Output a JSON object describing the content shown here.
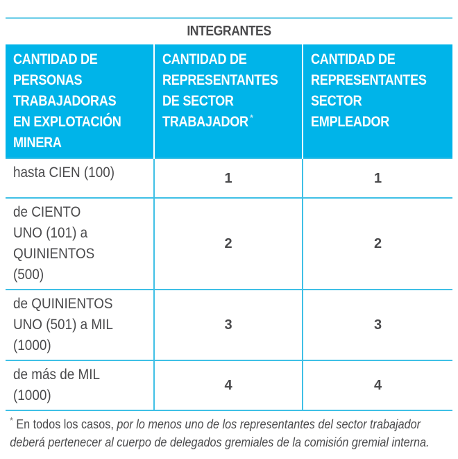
{
  "table": {
    "title": "INTEGRANTES",
    "header_color": "#00b4e9",
    "rule_color": "#3fc0e6",
    "columns": [
      {
        "label": "CANTIDAD DE PERSONAS TRABAJADORAS EN EXPLOTACIÓN MINERA",
        "lines": [
          "CANTIDAD DE",
          "PERSONAS",
          "TRABAJADORAS",
          "EN EXPLOTACIÓN",
          "MINERA"
        ]
      },
      {
        "label": "CANTIDAD DE REPRESENTANTES DE SECTOR TRABAJADOR *",
        "lines": [
          "CANTIDAD DE",
          "REPRESENTANTES",
          "DE SECTOR",
          "TRABAJADOR"
        ],
        "marker": "*"
      },
      {
        "label": "CANTIDAD DE REPRESENTANTES SECTOR EMPLEADOR",
        "lines": [
          "CANTIDAD DE",
          "REPRESENTANTES",
          "SECTOR",
          "EMPLEADOR"
        ]
      }
    ],
    "rows": [
      {
        "range_lines": [
          "hasta CIEN (100)"
        ],
        "trabajador": "1",
        "empleador": "1"
      },
      {
        "range_lines": [
          "de CIENTO",
          "UNO (101) a",
          "QUINIENTOS",
          "(500)"
        ],
        "trabajador": "2",
        "empleador": "2"
      },
      {
        "range_lines": [
          "de QUINIENTOS",
          "UNO (501) a MIL",
          "(1000)"
        ],
        "trabajador": "3",
        "empleador": "3"
      },
      {
        "range_lines": [
          "de más de MIL",
          "(1000)"
        ],
        "trabajador": "4",
        "empleador": "4"
      }
    ]
  },
  "footnote": {
    "marker": "*",
    "upright": " En todos los casos,",
    "italic": " por lo menos uno de los representantes del sector trabajador deberá pertenecer al cuerpo de delegados gremiales de la comisión gremial interna."
  }
}
